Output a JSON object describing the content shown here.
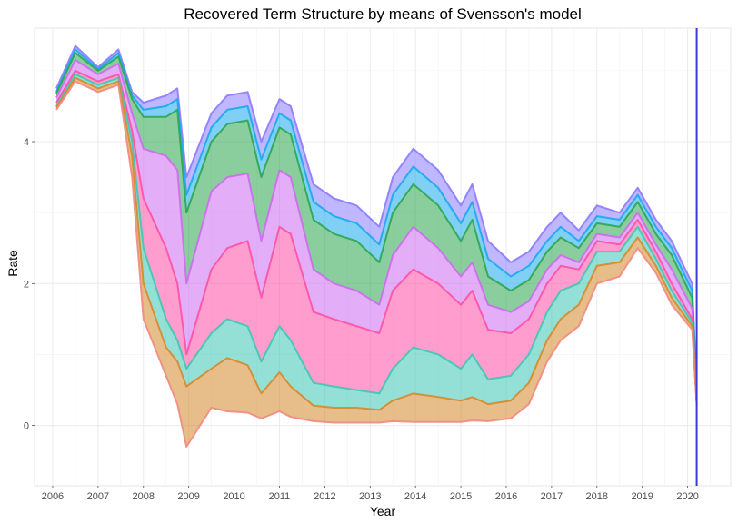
{
  "chart_data": {
    "type": "line",
    "title": "Recovered Term Structure by means of Svensson's model",
    "xlabel": "Year",
    "ylabel": "Rate",
    "xlim": [
      2005.6,
      2020.95
    ],
    "ylim": [
      -0.85,
      5.6
    ],
    "x_ticks": [
      2006,
      2007,
      2008,
      2009,
      2010,
      2011,
      2012,
      2013,
      2014,
      2015,
      2016,
      2017,
      2018,
      2019,
      2020
    ],
    "y_ticks": [
      0,
      2,
      4
    ],
    "grid": true,
    "legend": "none",
    "vertical_marker": {
      "x": 2020.2,
      "color": "#3b3bd1"
    },
    "x": [
      2006.08,
      2006.5,
      2007.0,
      2007.45,
      2007.75,
      2008.0,
      2008.5,
      2008.75,
      2008.95,
      2009.5,
      2009.85,
      2010.3,
      2010.6,
      2011.0,
      2011.25,
      2011.75,
      2012.2,
      2012.7,
      2013.2,
      2013.5,
      2013.95,
      2014.5,
      2015.0,
      2015.25,
      2015.6,
      2016.1,
      2016.5,
      2016.9,
      2017.2,
      2017.6,
      2018.0,
      2018.5,
      2018.9,
      2019.3,
      2019.65,
      2020.1,
      2020.2
    ],
    "series": [
      {
        "color": "#8b7bff",
        "values": [
          4.75,
          5.35,
          5.05,
          5.3,
          4.7,
          4.55,
          4.65,
          4.75,
          3.5,
          4.4,
          4.65,
          4.7,
          4.0,
          4.6,
          4.5,
          3.4,
          3.2,
          3.1,
          2.8,
          3.5,
          3.9,
          3.6,
          3.1,
          3.4,
          2.6,
          2.3,
          2.45,
          2.8,
          3.0,
          2.75,
          3.1,
          3.0,
          3.35,
          2.9,
          2.6,
          2.0,
          0.5
        ]
      },
      {
        "color": "#17a9ed",
        "values": [
          4.7,
          5.3,
          5.02,
          5.25,
          4.65,
          4.45,
          4.5,
          4.6,
          3.25,
          4.2,
          4.45,
          4.5,
          3.75,
          4.4,
          4.3,
          3.15,
          2.95,
          2.85,
          2.55,
          3.25,
          3.65,
          3.35,
          2.85,
          3.15,
          2.35,
          2.1,
          2.25,
          2.6,
          2.8,
          2.6,
          2.95,
          2.9,
          3.25,
          2.8,
          2.5,
          1.9,
          0.45
        ]
      },
      {
        "color": "#2aa64f",
        "values": [
          4.68,
          5.25,
          5.0,
          5.2,
          4.6,
          4.35,
          4.35,
          4.45,
          3.0,
          4.0,
          4.25,
          4.3,
          3.5,
          4.2,
          4.1,
          2.9,
          2.7,
          2.6,
          2.3,
          3.0,
          3.4,
          3.1,
          2.6,
          2.9,
          2.1,
          1.9,
          2.05,
          2.45,
          2.65,
          2.5,
          2.85,
          2.8,
          3.15,
          2.7,
          2.4,
          1.8,
          0.4
        ]
      },
      {
        "color": "#cc6bf0",
        "values": [
          4.62,
          5.15,
          4.95,
          5.1,
          4.4,
          3.9,
          3.8,
          3.6,
          2.0,
          3.3,
          3.5,
          3.55,
          2.6,
          3.6,
          3.5,
          2.2,
          2.0,
          1.9,
          1.7,
          2.4,
          2.8,
          2.5,
          2.1,
          2.3,
          1.7,
          1.6,
          1.75,
          2.2,
          2.4,
          2.3,
          2.7,
          2.65,
          3.0,
          2.55,
          2.2,
          1.65,
          0.35
        ]
      },
      {
        "color": "#ff4fa6",
        "values": [
          4.55,
          5.0,
          4.85,
          4.95,
          4.15,
          3.2,
          2.5,
          2.0,
          1.0,
          2.2,
          2.5,
          2.6,
          1.8,
          2.8,
          2.7,
          1.6,
          1.5,
          1.4,
          1.3,
          1.9,
          2.2,
          2.0,
          1.7,
          1.9,
          1.35,
          1.3,
          1.5,
          2.0,
          2.25,
          2.2,
          2.6,
          2.55,
          2.9,
          2.45,
          2.0,
          1.5,
          0.3
        ]
      },
      {
        "color": "#3dc7b4",
        "values": [
          4.5,
          4.95,
          4.8,
          4.9,
          4.0,
          2.5,
          1.5,
          1.2,
          0.8,
          1.3,
          1.5,
          1.4,
          0.9,
          1.4,
          1.2,
          0.6,
          0.55,
          0.5,
          0.45,
          0.8,
          1.1,
          1.0,
          0.8,
          1.0,
          0.65,
          0.7,
          1.0,
          1.6,
          1.9,
          2.0,
          2.45,
          2.45,
          2.8,
          2.35,
          1.9,
          1.45,
          0.3
        ]
      },
      {
        "color": "#d4892a",
        "values": [
          4.48,
          4.9,
          4.75,
          4.85,
          3.8,
          2.0,
          1.1,
          0.9,
          0.55,
          0.8,
          0.95,
          0.85,
          0.45,
          0.75,
          0.55,
          0.28,
          0.25,
          0.25,
          0.22,
          0.35,
          0.45,
          0.4,
          0.35,
          0.4,
          0.3,
          0.35,
          0.6,
          1.2,
          1.5,
          1.7,
          2.25,
          2.3,
          2.65,
          2.25,
          1.8,
          1.4,
          0.3
        ]
      },
      {
        "color": "#f08a80",
        "values": [
          4.45,
          4.85,
          4.7,
          4.8,
          3.5,
          1.5,
          0.7,
          0.3,
          -0.3,
          0.25,
          0.2,
          0.18,
          0.1,
          0.2,
          0.12,
          0.06,
          0.04,
          0.04,
          0.04,
          0.06,
          0.05,
          0.05,
          0.05,
          0.07,
          0.06,
          0.1,
          0.3,
          0.9,
          1.2,
          1.4,
          2.0,
          2.1,
          2.5,
          2.15,
          1.7,
          1.35,
          0.3
        ]
      }
    ]
  }
}
